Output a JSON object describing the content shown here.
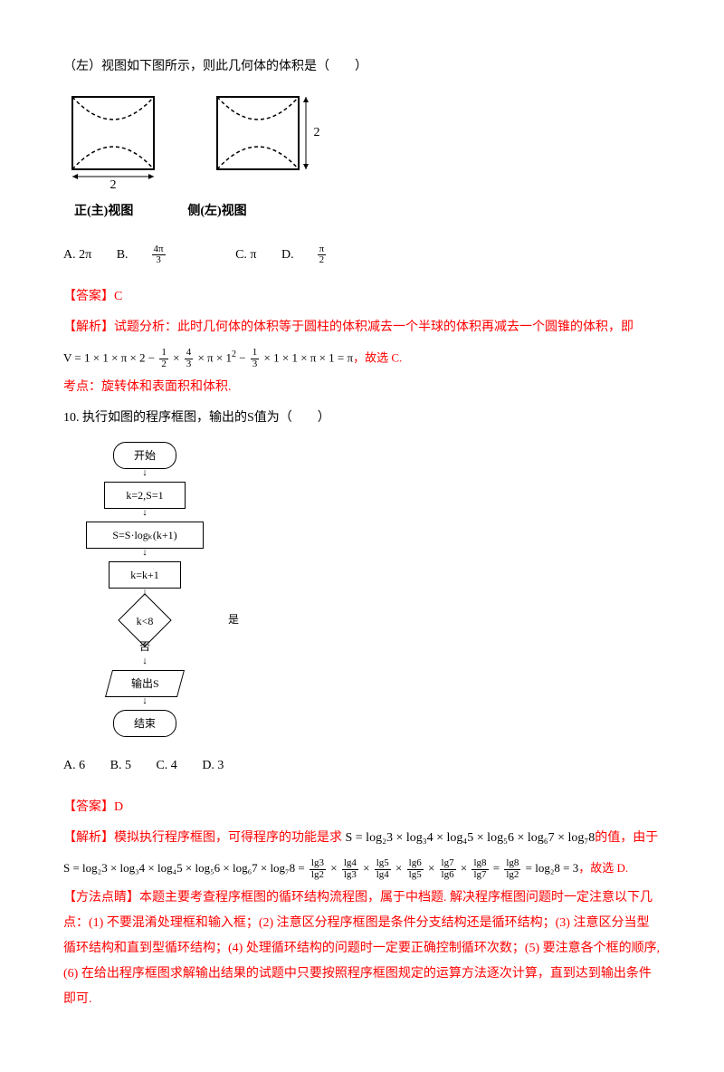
{
  "q9": {
    "intro": "（左）视图如下图所示，则此几何体的体积是（　　）",
    "view_dim_left": "2",
    "view_dim_right": "2",
    "view_label_left": "正(主)视图",
    "view_label_right": "侧(左)视图",
    "optA": "A. 2π",
    "optB_pre": "B. ",
    "optB_num": "4π",
    "optB_den": "3",
    "optC": "C. π",
    "optD_pre": "D. ",
    "optD_num": "π",
    "optD_den": "2",
    "ans_label": "【答案】",
    "ans_text": "C",
    "jiexi_label": "【解析】",
    "jiexi_text": "试题分析：此时几何体的体积等于圆柱的体积减去一个半球的体积再减去一个圆锥的体积，即",
    "formula_pre": "V = 1 × 1 × π × 2 − ",
    "formula_f1n": "1",
    "formula_f1d": "2",
    "formula_mid1": " × ",
    "formula_f2n": "4",
    "formula_f2d": "3",
    "formula_mid2": " × π × 1",
    "formula_exp1": "2",
    "formula_mid15": " − ",
    "formula_f3n": "1",
    "formula_f3d": "3",
    "formula_mid3": " × 1 × 1 × π × 1 = π",
    "formula_tail": "，故选 C.",
    "kaodian": "考点：旋转体和表面积和体积."
  },
  "q10": {
    "stem": "10. 执行如图的程序框图，输出的S值为（　　）",
    "fc": {
      "start": "开始",
      "init": "k=2,S=1",
      "body": "S=S·logₖ(k+1)",
      "inc": "k=k+1",
      "cond": "k<8",
      "yes": "是",
      "no": "否",
      "out": "输出S",
      "end": "结束"
    },
    "optA": "A. 6",
    "optB": "B. 5",
    "optC": "C. 4",
    "optD": "D. 3",
    "ans_label": "【答案】",
    "ans_text": "D",
    "jiexi_label": "【解析】",
    "jiexi1": "模拟执行程序框图，可得程序的功能是求 ",
    "jiexi1_tail": "的值，由于",
    "long_chain_html": "S = log₂3 × log₃4 × log₄5 × log₅6 × log₆7 × log₇8",
    "step_chain_html": "S = log₂3 × log₃4 × log₄5 × log₅6 × log₆7 × log₇8 = ",
    "step_result": " = log₂8 = 3",
    "step_tail": "，故选 D.",
    "tips_label": "【方法点睛】",
    "tips_body": "本题主要考查程序框图的循环结构流程图，属于中档题. 解决程序框图问题时一定注意以下几点：(1) 不要混淆处理框和输入框；(2) 注意区分程序框图是条件分支结构还是循环结构；(3) 注意区分当型循环结构和直到型循环结构；(4) 处理循环结构的问题时一定要正确控制循环次数；(5) 要注意各个框的顺序,(6) 在给出程序框图求解输出结果的试题中只要按照程序框图规定的运算方法逐次计算，直到达到输出条件即可.",
    "lg_pairs": [
      {
        "n": "lg3",
        "d": "lg2"
      },
      {
        "n": "lg4",
        "d": "lg3"
      },
      {
        "n": "lg5",
        "d": "lg4"
      },
      {
        "n": "lg6",
        "d": "lg5"
      },
      {
        "n": "lg7",
        "d": "lg6"
      },
      {
        "n": "lg8",
        "d": "lg7"
      }
    ],
    "lg_join": " × ",
    "lg_last": {
      "n": "lg8",
      "d": "lg2"
    }
  },
  "colors": {
    "red": "#ff0000",
    "black": "#000000",
    "bg": "#ffffff"
  }
}
